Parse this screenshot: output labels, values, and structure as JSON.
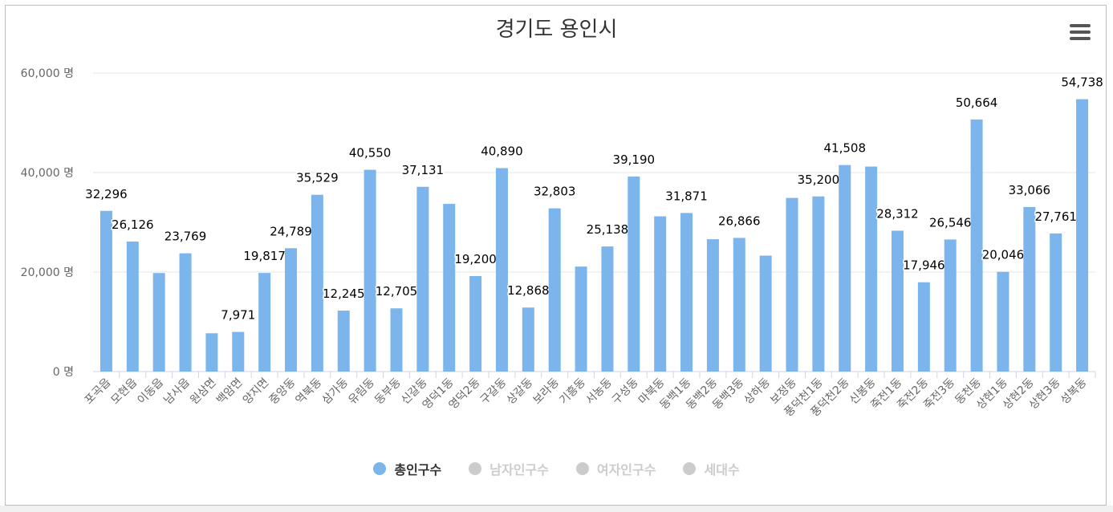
{
  "chart_data": {
    "type": "bar",
    "title": "경기도 용인시",
    "xlabel": "",
    "ylabel": "",
    "ylim": [
      0,
      60000
    ],
    "yticks": [
      0,
      20000,
      40000,
      60000
    ],
    "ytick_labels": [
      "0 명",
      "20,000 명",
      "40,000 명",
      "60,000 명"
    ],
    "grid": true,
    "legend_position": "bottom-center",
    "categories": [
      "포곡읍",
      "모현읍",
      "이동읍",
      "남사읍",
      "원삼면",
      "백암면",
      "양지면",
      "중앙동",
      "역북동",
      "삼가동",
      "유림동",
      "동부동",
      "신갈동",
      "영덕1동",
      "영덕2동",
      "구갈동",
      "상갈동",
      "보라동",
      "기흥동",
      "서농동",
      "구성동",
      "마북동",
      "동백1동",
      "동백2동",
      "동백3동",
      "상하동",
      "보정동",
      "풍덕천1동",
      "풍덕천2동",
      "신봉동",
      "죽전1동",
      "죽전2동",
      "죽전3동",
      "동천동",
      "상현1동",
      "상현2동",
      "상현3동",
      "성복동"
    ],
    "series": [
      {
        "name": "총인구수",
        "color": "#7cb5ec",
        "values": [
          32296,
          26126,
          19800,
          23769,
          7700,
          7971,
          19817,
          24789,
          35529,
          12245,
          40550,
          12705,
          37131,
          33700,
          19200,
          40890,
          12868,
          32803,
          21100,
          25138,
          39190,
          31200,
          31871,
          26600,
          26866,
          23300,
          34900,
          35200,
          41508,
          41200,
          28312,
          17946,
          26546,
          50664,
          20046,
          33066,
          27761,
          54738
        ],
        "labels": [
          "32,296",
          "26,126",
          "",
          "23,769",
          "",
          "7,971",
          "19,817",
          "24,789",
          "35,529",
          "12,245",
          "40,550",
          "12,705",
          "37,131",
          "",
          "19,200",
          "40,890",
          "12,868",
          "32,803",
          "",
          "25,138",
          "39,190",
          "",
          "31,871",
          "",
          "26,866",
          "",
          "",
          "35,200",
          "41,508",
          "",
          "28,312",
          "17,946",
          "26,546",
          "50,664",
          "20,046",
          "33,066",
          "27,761",
          "54,738"
        ]
      }
    ]
  },
  "legend": {
    "items": [
      {
        "label": "총인구수",
        "color": "#7cb5ec",
        "active": true
      },
      {
        "label": "남자인구수",
        "color": "#cccccc",
        "active": false
      },
      {
        "label": "여자인구수",
        "color": "#cccccc",
        "active": false
      },
      {
        "label": "세대수",
        "color": "#cccccc",
        "active": false
      }
    ]
  },
  "colors": {
    "bar": "#7cb5ec",
    "grid": "#e6e6e6",
    "axis_text": "#666666",
    "data_label": "#000000"
  }
}
